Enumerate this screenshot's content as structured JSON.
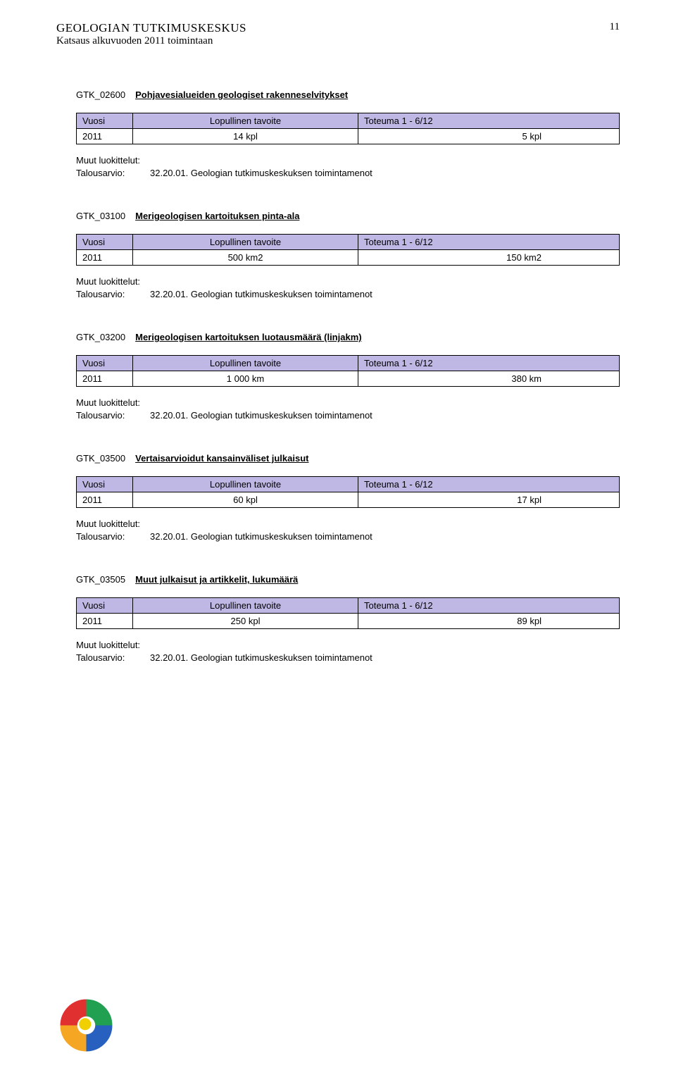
{
  "header": {
    "line1": "GEOLOGIAN TUTKIMUSKESKUS",
    "line2": "Katsaus alkuvuoden 2011 toimintaan",
    "page_number": "11"
  },
  "table_headers": {
    "year": "Vuosi",
    "target": "Lopullinen tavoite",
    "actual": "Toteuma 1 - 6/12"
  },
  "meta_labels": {
    "other": "Muut luokittelut:",
    "budget_label": "Talousarvio:",
    "budget_value": "32.20.01. Geologian tutkimuskeskuksen toimintamenot"
  },
  "sections": [
    {
      "code": "GTK_02600",
      "name": "Pohjavesialueiden geologiset rakenneselvitykset",
      "year": "2011",
      "target": "14 kpl",
      "actual": "5 kpl"
    },
    {
      "code": "GTK_03100",
      "name": "Merigeologisen kartoituksen pinta-ala",
      "year": "2011",
      "target": "500 km2",
      "actual": "150 km2"
    },
    {
      "code": "GTK_03200",
      "name": "Merigeologisen kartoituksen luotausmäärä (linjakm)",
      "year": "2011",
      "target": "1 000 km",
      "actual": "380 km"
    },
    {
      "code": "GTK_03500",
      "name": "Vertaisarvioidut kansainväliset julkaisut",
      "year": "2011",
      "target": "60 kpl",
      "actual": "17 kpl"
    },
    {
      "code": "GTK_03505",
      "name": "Muut julkaisut ja artikkelit, lukumäärä",
      "year": "2011",
      "target": "250 kpl",
      "actual": "89 kpl"
    }
  ],
  "colors": {
    "header_bg": "#bfb8e4",
    "border": "#000000",
    "table_header_bg": "#bfb8e4"
  }
}
